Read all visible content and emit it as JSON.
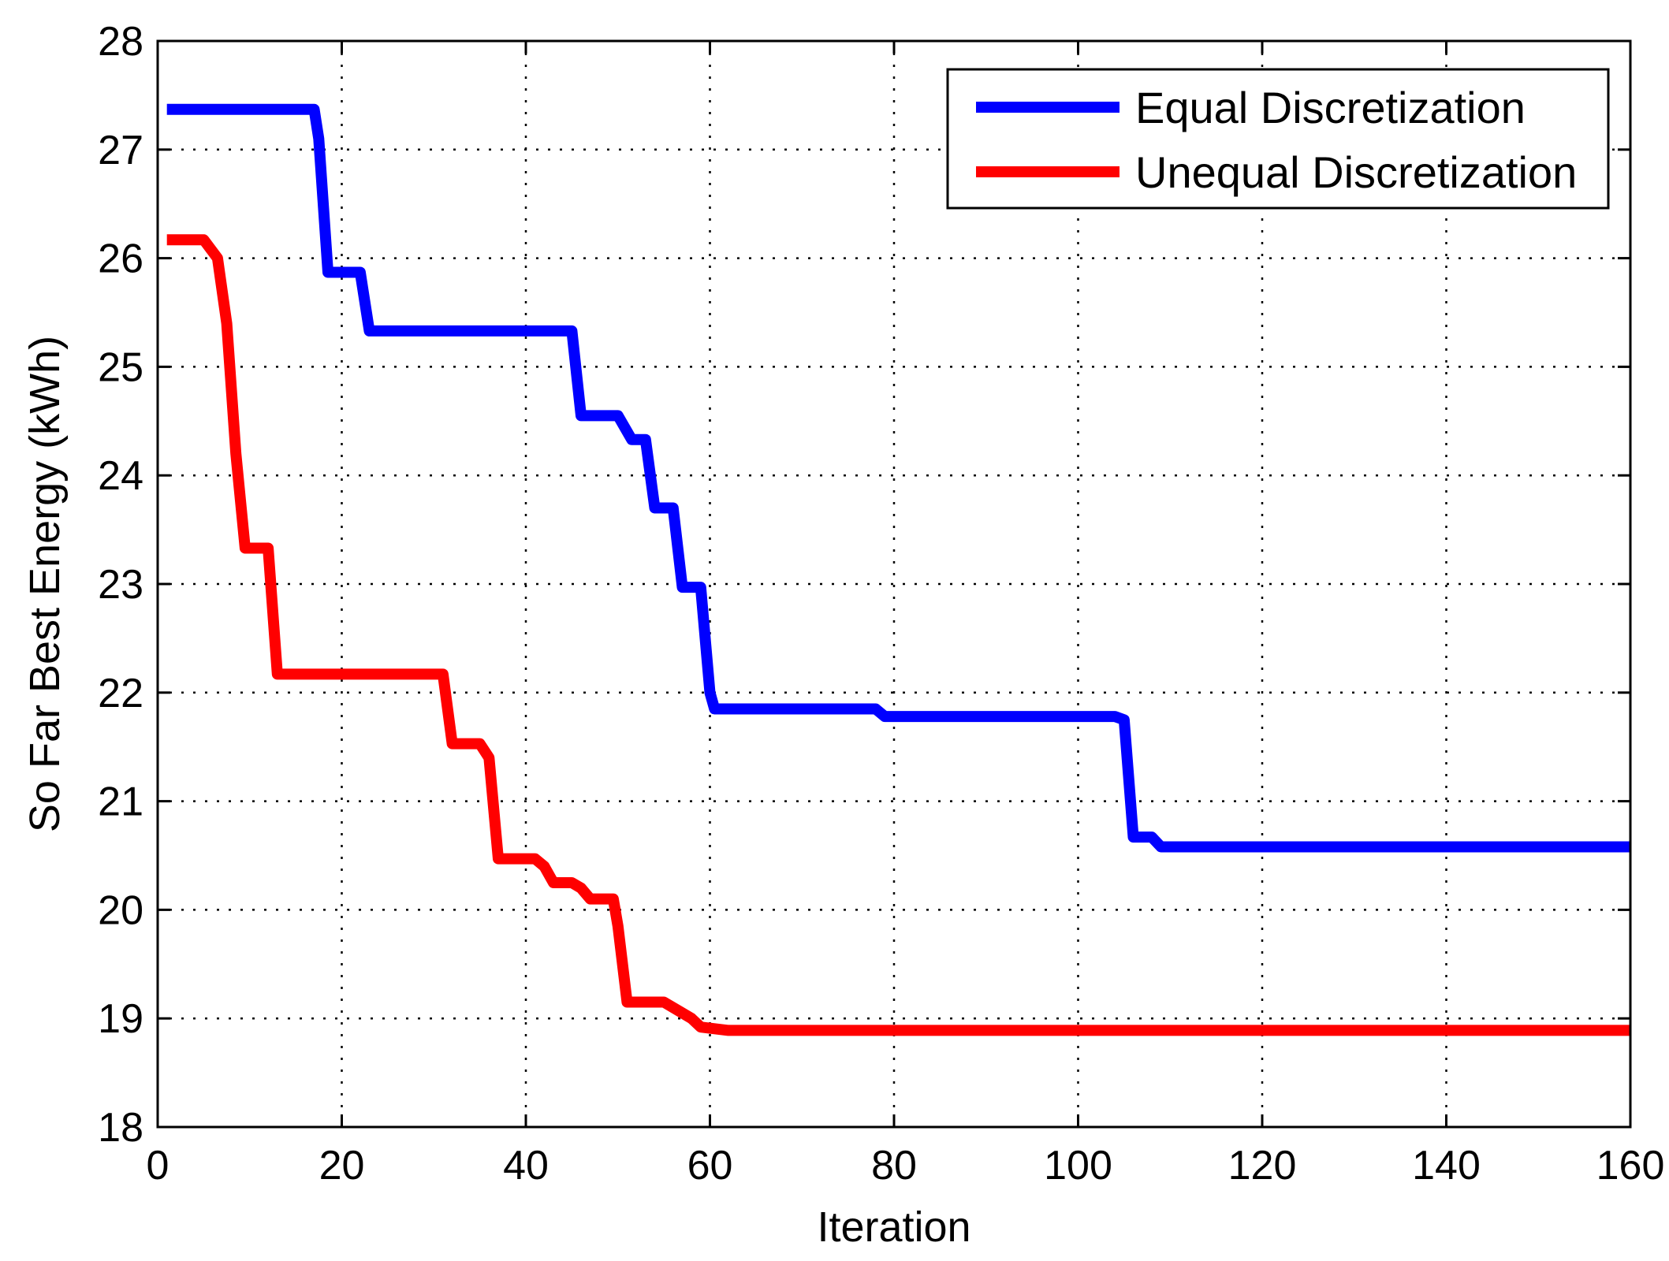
{
  "chart_data": {
    "type": "line",
    "title": "",
    "xlabel": "Iteration",
    "ylabel": "So Far Best Energy (kWh)",
    "xlim": [
      0,
      160
    ],
    "ylim": [
      18,
      28
    ],
    "xticks": [
      "0",
      "20",
      "40",
      "60",
      "80",
      "100",
      "120",
      "140",
      "160"
    ],
    "yticks": [
      "18",
      "19",
      "20",
      "21",
      "22",
      "23",
      "24",
      "25",
      "26",
      "27",
      "28"
    ],
    "grid": true,
    "legend_position": "top-right",
    "series": [
      {
        "name": "Equal Discretization",
        "color": "#0000ff",
        "points": [
          [
            1,
            27.37
          ],
          [
            17,
            27.37
          ],
          [
            17.5,
            27.1
          ],
          [
            18.5,
            25.87
          ],
          [
            22,
            25.87
          ],
          [
            23,
            25.33
          ],
          [
            45,
            25.33
          ],
          [
            46,
            24.55
          ],
          [
            50,
            24.55
          ],
          [
            51.5,
            24.33
          ],
          [
            53,
            24.33
          ],
          [
            54,
            23.7
          ],
          [
            56,
            23.7
          ],
          [
            57,
            22.97
          ],
          [
            59,
            22.97
          ],
          [
            60,
            22.0
          ],
          [
            60.5,
            21.85
          ],
          [
            78,
            21.85
          ],
          [
            79,
            21.78
          ],
          [
            104,
            21.78
          ],
          [
            105,
            21.75
          ],
          [
            106,
            20.67
          ],
          [
            108,
            20.67
          ],
          [
            109,
            20.58
          ],
          [
            160,
            20.58
          ]
        ]
      },
      {
        "name": "Unequal Discretization",
        "color": "#ff0000",
        "points": [
          [
            1,
            26.17
          ],
          [
            5,
            26.17
          ],
          [
            6.5,
            26.0
          ],
          [
            7.5,
            25.4
          ],
          [
            8.5,
            24.2
          ],
          [
            9.5,
            23.33
          ],
          [
            12,
            23.33
          ],
          [
            13,
            22.17
          ],
          [
            31,
            22.17
          ],
          [
            32,
            21.53
          ],
          [
            35,
            21.53
          ],
          [
            36,
            21.4
          ],
          [
            37,
            20.47
          ],
          [
            41,
            20.47
          ],
          [
            42,
            20.4
          ],
          [
            43,
            20.25
          ],
          [
            45,
            20.25
          ],
          [
            46,
            20.2
          ],
          [
            47,
            20.1
          ],
          [
            49.5,
            20.1
          ],
          [
            50,
            19.85
          ],
          [
            51,
            19.15
          ],
          [
            55,
            19.15
          ],
          [
            57,
            19.05
          ],
          [
            58,
            19.0
          ],
          [
            59,
            18.92
          ],
          [
            62,
            18.89
          ],
          [
            160,
            18.89
          ]
        ]
      }
    ]
  }
}
